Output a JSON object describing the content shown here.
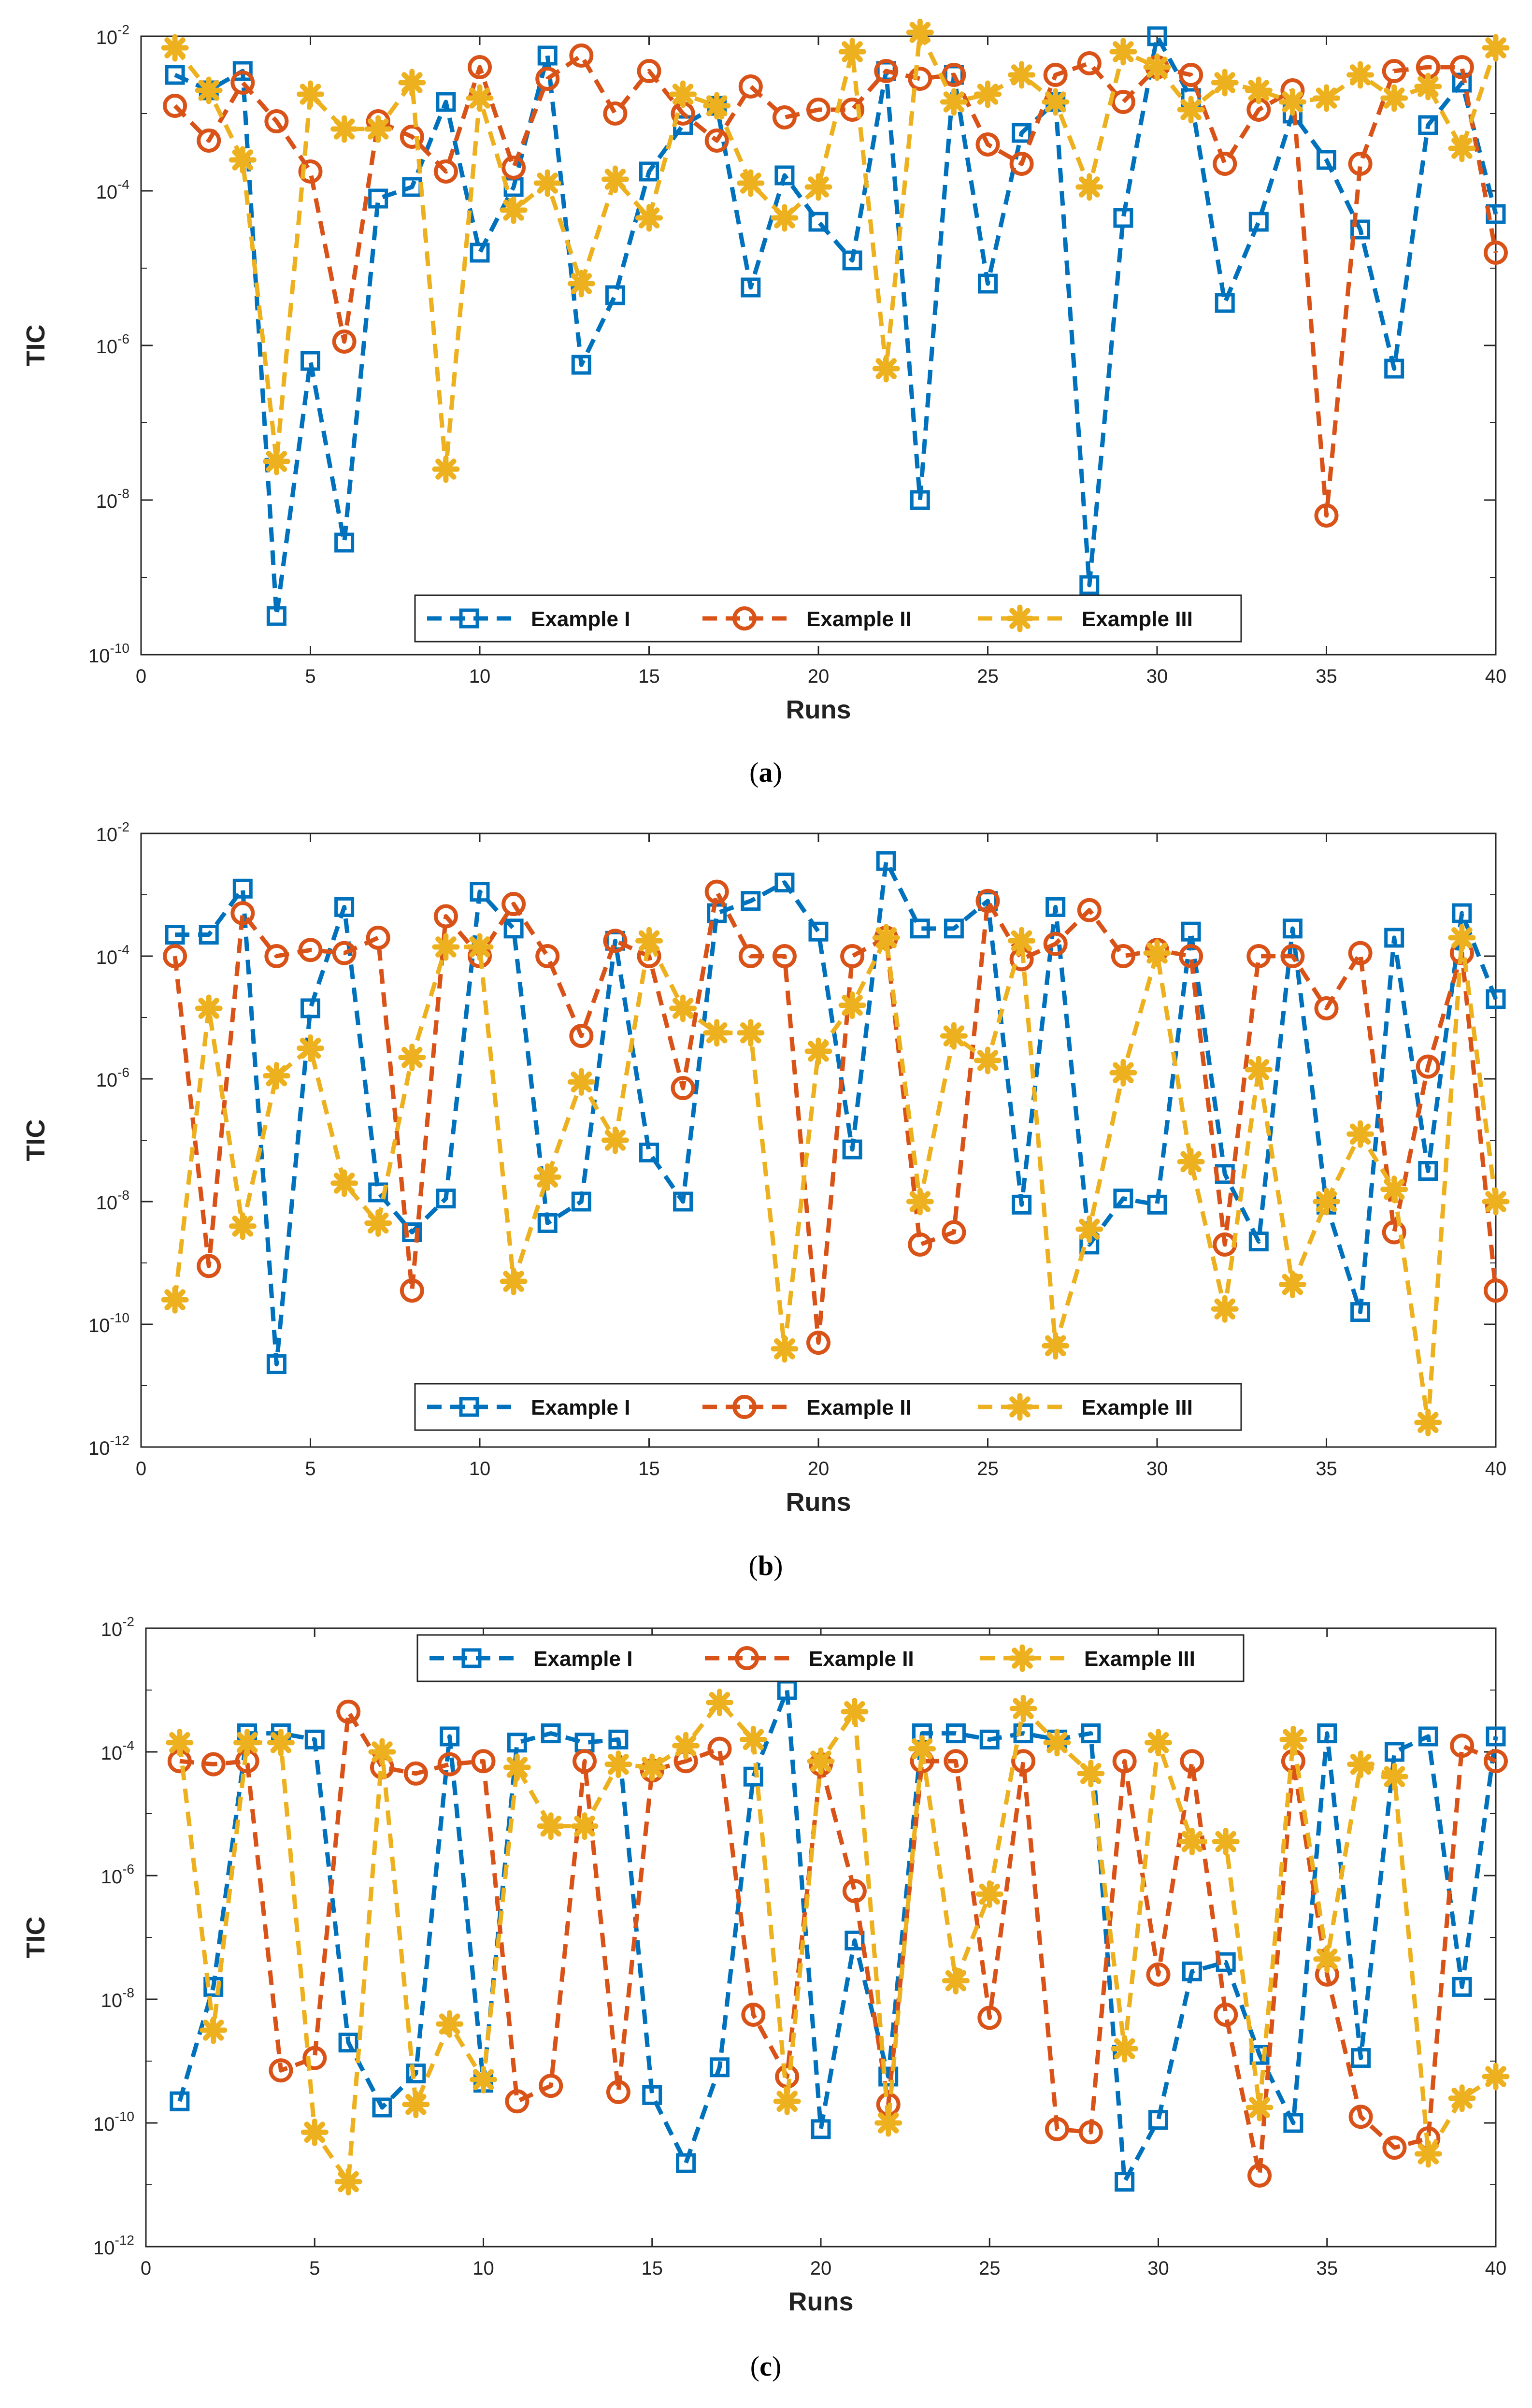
{
  "figure": {
    "panels": [
      {
        "caption_letter": "a"
      },
      {
        "caption_letter": "b"
      },
      {
        "caption_letter": "c"
      }
    ]
  },
  "chart_data": [
    {
      "type": "line",
      "xlabel": "Runs",
      "ylabel": "TIC",
      "xlim": [
        0,
        40
      ],
      "ylim_log10": [
        -10,
        -2
      ],
      "xticks": [
        0,
        5,
        10,
        15,
        20,
        25,
        30,
        35,
        40
      ],
      "yticks_log10": [
        -10,
        -8,
        -6,
        -4,
        -2
      ],
      "legend_location": "lower-center",
      "x": [
        1,
        2,
        3,
        4,
        5,
        6,
        7,
        8,
        9,
        10,
        11,
        12,
        13,
        14,
        15,
        16,
        17,
        18,
        19,
        20,
        21,
        22,
        23,
        24,
        25,
        26,
        27,
        28,
        29,
        30,
        31,
        32,
        33,
        34,
        35,
        36,
        37,
        38,
        39,
        40
      ],
      "series": [
        {
          "name": "Example I",
          "color": "#0072bd",
          "marker": "square",
          "log10_values": [
            -2.5,
            -2.7,
            -2.45,
            -9.5,
            -6.2,
            -8.55,
            -4.1,
            -3.95,
            -2.85,
            -4.8,
            -3.95,
            -2.25,
            -6.25,
            -5.35,
            -3.75,
            -3.15,
            -2.9,
            -5.25,
            -3.8,
            -4.4,
            -4.9,
            -2.45,
            -8.0,
            -2.5,
            -5.2,
            -3.25,
            -2.85,
            -9.1,
            -4.35,
            -2.0,
            -2.8,
            -5.45,
            -4.4,
            -3.0,
            -3.6,
            -4.5,
            -6.3,
            -3.15,
            -2.6,
            -4.3
          ]
        },
        {
          "name": "Example II",
          "color": "#d95319",
          "marker": "circle",
          "log10_values": [
            -2.9,
            -3.35,
            -2.6,
            -3.1,
            -3.75,
            -5.95,
            -3.1,
            -3.3,
            -3.75,
            -2.4,
            -3.7,
            -2.55,
            -2.25,
            -3.0,
            -2.45,
            -3.0,
            -3.35,
            -2.65,
            -3.05,
            -2.95,
            -2.95,
            -2.45,
            -2.55,
            -2.5,
            -3.4,
            -3.65,
            -2.5,
            -2.35,
            -2.85,
            -2.4,
            -2.5,
            -3.65,
            -2.95,
            -2.7,
            -8.2,
            -3.65,
            -2.45,
            -2.4,
            -2.4,
            -4.8
          ]
        },
        {
          "name": "Example III",
          "color": "#edb120",
          "marker": "asterisk",
          "log10_values": [
            -2.15,
            -2.7,
            -3.6,
            -7.5,
            -2.75,
            -3.2,
            -3.2,
            -2.6,
            -7.6,
            -2.8,
            -4.25,
            -3.9,
            -5.2,
            -3.85,
            -4.35,
            -2.75,
            -2.9,
            -3.9,
            -4.35,
            -3.95,
            -2.2,
            -6.3,
            -1.95,
            -2.85,
            -2.75,
            -2.5,
            -2.85,
            -3.95,
            -2.2,
            -2.4,
            -2.95,
            -2.6,
            -2.7,
            -2.85,
            -2.8,
            -2.5,
            -2.8,
            -2.65,
            -3.45,
            -2.15
          ]
        }
      ]
    },
    {
      "type": "line",
      "xlabel": "Runs",
      "ylabel": "TIC",
      "xlim": [
        0,
        40
      ],
      "ylim_log10": [
        -12,
        -2
      ],
      "xticks": [
        0,
        5,
        10,
        15,
        20,
        25,
        30,
        35,
        40
      ],
      "yticks_log10": [
        -12,
        -10,
        -8,
        -6,
        -4,
        -2
      ],
      "legend_location": "lower-center",
      "x": [
        1,
        2,
        3,
        4,
        5,
        6,
        7,
        8,
        9,
        10,
        11,
        12,
        13,
        14,
        15,
        16,
        17,
        18,
        19,
        20,
        21,
        22,
        23,
        24,
        25,
        26,
        27,
        28,
        29,
        30,
        31,
        32,
        33,
        34,
        35,
        36,
        37,
        38,
        39,
        40
      ],
      "series": [
        {
          "name": "Example I",
          "color": "#0072bd",
          "marker": "square",
          "log10_values": [
            -3.65,
            -3.65,
            -2.9,
            -10.65,
            -4.85,
            -3.2,
            -7.85,
            -8.5,
            -7.95,
            -2.95,
            -3.55,
            -8.35,
            -8.0,
            -3.75,
            -7.2,
            -8.0,
            -3.3,
            -3.1,
            -2.8,
            -3.6,
            -7.15,
            -2.45,
            -3.55,
            -3.55,
            -3.1,
            -8.05,
            -3.2,
            -8.7,
            -7.95,
            -8.05,
            -3.6,
            -7.55,
            -8.65,
            -3.55,
            -8.05,
            -9.8,
            -3.7,
            -7.5,
            -3.3,
            -4.7
          ]
        },
        {
          "name": "Example II",
          "color": "#d95319",
          "marker": "circle",
          "log10_values": [
            -4.0,
            -9.05,
            -3.3,
            -4.0,
            -3.9,
            -3.95,
            -3.7,
            -9.45,
            -3.35,
            -4.0,
            -3.15,
            -4.0,
            -5.3,
            -3.75,
            -4.0,
            -6.15,
            -2.95,
            -4.0,
            -4.0,
            -10.3,
            -4.0,
            -3.7,
            -8.7,
            -8.5,
            -3.1,
            -4.05,
            -3.8,
            -3.25,
            -4.0,
            -3.9,
            -4.0,
            -8.7,
            -4.0,
            -4.0,
            -4.85,
            -3.95,
            -8.5,
            -5.8,
            -3.95,
            -9.45
          ]
        },
        {
          "name": "Example III",
          "color": "#edb120",
          "marker": "asterisk",
          "log10_values": [
            -9.6,
            -4.85,
            -8.4,
            -5.95,
            -5.5,
            -7.7,
            -8.35,
            -5.65,
            -3.85,
            -3.85,
            -9.3,
            -7.6,
            -6.05,
            -7.0,
            -3.75,
            -4.85,
            -5.25,
            -5.25,
            -10.4,
            -5.55,
            -4.8,
            -3.7,
            -8.0,
            -5.3,
            -5.7,
            -3.75,
            -10.35,
            -8.45,
            -5.9,
            -3.95,
            -7.35,
            -9.75,
            -5.85,
            -9.35,
            -8.0,
            -6.9,
            -7.8,
            -11.6,
            -3.7,
            -8.0
          ]
        }
      ]
    },
    {
      "type": "line",
      "xlabel": "Runs",
      "ylabel": "TIC",
      "xlim": [
        0,
        40
      ],
      "ylim_log10": [
        -12,
        -2
      ],
      "xticks": [
        0,
        5,
        10,
        15,
        20,
        25,
        30,
        35,
        40
      ],
      "yticks_log10": [
        -12,
        -10,
        -8,
        -6,
        -4,
        -2
      ],
      "legend_location": "top-center",
      "x": [
        1,
        2,
        3,
        4,
        5,
        6,
        7,
        8,
        9,
        10,
        11,
        12,
        13,
        14,
        15,
        16,
        17,
        18,
        19,
        20,
        21,
        22,
        23,
        24,
        25,
        26,
        27,
        28,
        29,
        30,
        31,
        32,
        33,
        34,
        35,
        36,
        37,
        38,
        39,
        40
      ],
      "series": [
        {
          "name": "Example I",
          "color": "#0072bd",
          "marker": "square",
          "log10_values": [
            -9.65,
            -7.8,
            -3.7,
            -3.7,
            -3.8,
            -8.7,
            -9.75,
            -9.2,
            -3.75,
            -9.35,
            -3.85,
            -3.7,
            -3.85,
            -3.8,
            -9.55,
            -10.65,
            -9.1,
            -4.4,
            -3.0,
            -10.1,
            -7.05,
            -9.25,
            -3.7,
            -3.7,
            -3.8,
            -3.7,
            -3.8,
            -3.7,
            -10.95,
            -9.95,
            -7.55,
            -7.4,
            -8.9,
            -10.0,
            -3.7,
            -8.95,
            -4.0,
            -3.75,
            -7.8,
            -3.75
          ]
        },
        {
          "name": "Example II",
          "color": "#d95319",
          "marker": "circle",
          "log10_values": [
            -4.15,
            -4.2,
            -4.15,
            -9.15,
            -8.95,
            -3.35,
            -4.25,
            -4.35,
            -4.2,
            -4.15,
            -9.65,
            -9.4,
            -4.15,
            -9.5,
            -4.3,
            -4.15,
            -3.95,
            -8.25,
            -9.25,
            -4.2,
            -6.25,
            -9.7,
            -4.15,
            -4.15,
            -8.3,
            -4.15,
            -10.1,
            -10.15,
            -4.15,
            -7.6,
            -4.15,
            -8.25,
            -10.85,
            -4.15,
            -7.6,
            -9.9,
            -10.4,
            -10.25,
            -3.9,
            -4.15
          ]
        },
        {
          "name": "Example III",
          "color": "#edb120",
          "marker": "asterisk",
          "log10_values": [
            -3.85,
            -8.5,
            -3.85,
            -3.85,
            -10.15,
            -10.95,
            -4.0,
            -9.7,
            -8.4,
            -9.3,
            -4.25,
            -5.2,
            -5.2,
            -4.2,
            -4.25,
            -3.9,
            -3.2,
            -3.8,
            -9.65,
            -4.15,
            -3.35,
            -10.0,
            -3.95,
            -7.7,
            -6.3,
            -3.3,
            -3.85,
            -4.35,
            -8.8,
            -3.85,
            -5.45,
            -5.45,
            -9.75,
            -3.8,
            -7.35,
            -4.2,
            -4.4,
            -10.5,
            -9.6,
            -9.25
          ]
        }
      ]
    }
  ]
}
